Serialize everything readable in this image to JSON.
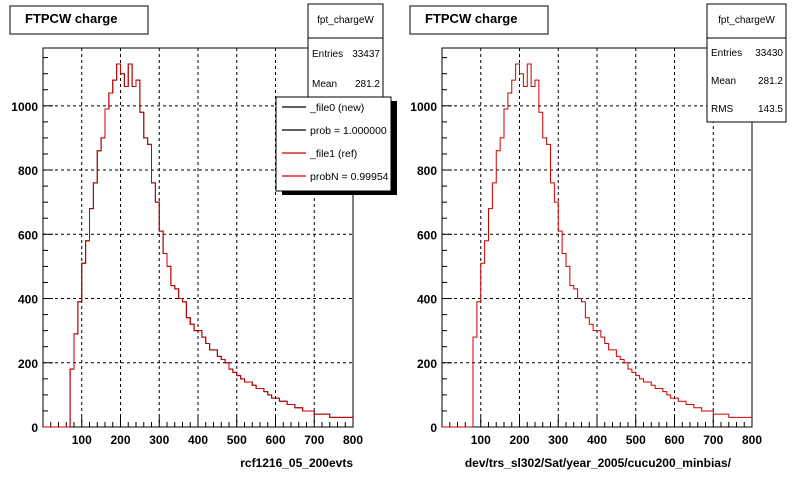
{
  "colors": {
    "background": "#ffffff",
    "frame": "#000000",
    "grid": "#000000",
    "new_hist": "#000000",
    "ref_hist": "#cc0000"
  },
  "chart_data": [
    {
      "type": "line",
      "title": "FTPCW charge",
      "xlabel": "rcf1216_05_200evts",
      "ylabel": "",
      "xlim": [
        0,
        800
      ],
      "ylim": [
        0,
        1180
      ],
      "x_ticks": [
        "100",
        "200",
        "300",
        "400",
        "500",
        "600",
        "700",
        "800"
      ],
      "y_ticks": [
        "0",
        "200",
        "400",
        "600",
        "800",
        "1000"
      ],
      "grid": true,
      "stats": {
        "name": "fpt_chargeW",
        "rows": [
          {
            "label": "Entries",
            "value": "33437"
          },
          {
            "label": "Mean",
            "value": "281.2"
          }
        ]
      },
      "legend": {
        "placement": "top-right",
        "entries": [
          {
            "label": "_file0 (new)",
            "color": "#000000"
          },
          {
            "label": "prob = 1.000000",
            "color": "#000000"
          },
          {
            "label": "_file1 (ref)",
            "color": "#cc0000"
          },
          {
            "label": "probN = 0.999548",
            "color": "#cc0000"
          }
        ]
      },
      "x": [
        70,
        80,
        90,
        100,
        110,
        120,
        130,
        140,
        150,
        160,
        170,
        180,
        190,
        200,
        210,
        220,
        230,
        240,
        250,
        260,
        270,
        280,
        290,
        300,
        310,
        320,
        330,
        340,
        350,
        360,
        370,
        380,
        390,
        400,
        410,
        420,
        430,
        440,
        450,
        460,
        470,
        480,
        490,
        500,
        510,
        520,
        530,
        540,
        550,
        560,
        570,
        580,
        590,
        600,
        610,
        620,
        630,
        640,
        650,
        660,
        670,
        680,
        690,
        700,
        710,
        720,
        730,
        740,
        750,
        760,
        770,
        780,
        790
      ],
      "series": [
        {
          "name": "_file0 (new)",
          "values": [
            180,
            290,
            390,
            510,
            580,
            680,
            760,
            860,
            900,
            990,
            1040,
            1080,
            1130,
            1100,
            1060,
            1130,
            1060,
            1080,
            980,
            900,
            880,
            760,
            700,
            610,
            540,
            500,
            440,
            430,
            400,
            390,
            340,
            320,
            300,
            300,
            280,
            260,
            240,
            240,
            220,
            210,
            200,
            180,
            170,
            160,
            150,
            140,
            140,
            130,
            120,
            120,
            110,
            100,
            90,
            90,
            80,
            80,
            70,
            70,
            60,
            60,
            50,
            50,
            50,
            40,
            40,
            40,
            40,
            30,
            30,
            30,
            30,
            30,
            30
          ]
        },
        {
          "name": "_file1 (ref)",
          "values": [
            180,
            290,
            390,
            510,
            580,
            680,
            760,
            860,
            900,
            990,
            1040,
            1080,
            1130,
            1100,
            1060,
            1130,
            1060,
            1080,
            980,
            900,
            880,
            760,
            700,
            610,
            540,
            500,
            440,
            430,
            400,
            390,
            340,
            320,
            300,
            300,
            280,
            260,
            240,
            240,
            220,
            210,
            200,
            180,
            170,
            160,
            150,
            140,
            140,
            130,
            120,
            120,
            110,
            100,
            90,
            90,
            80,
            80,
            70,
            70,
            60,
            60,
            50,
            50,
            50,
            40,
            40,
            40,
            40,
            30,
            30,
            30,
            30,
            30,
            30
          ]
        }
      ]
    },
    {
      "type": "line",
      "title": "FTPCW charge",
      "xlabel": "dev/trs_sl302/Sat/year_2005/cucu200_minbias/",
      "ylabel": "",
      "xlim": [
        0,
        800
      ],
      "ylim": [
        0,
        1180
      ],
      "x_ticks": [
        "100",
        "200",
        "300",
        "400",
        "500",
        "600",
        "700",
        "800"
      ],
      "y_ticks": [
        "0",
        "200",
        "400",
        "600",
        "800",
        "1000"
      ],
      "grid": true,
      "stats": {
        "name": "fpt_chargeW",
        "rows": [
          {
            "label": "Entries",
            "value": "33430"
          },
          {
            "label": "Mean",
            "value": "281.2"
          },
          {
            "label": "RMS",
            "value": "143.5"
          }
        ]
      },
      "x": [
        70,
        80,
        90,
        100,
        110,
        120,
        130,
        140,
        150,
        160,
        170,
        180,
        190,
        200,
        210,
        220,
        230,
        240,
        250,
        260,
        270,
        280,
        290,
        300,
        310,
        320,
        330,
        340,
        350,
        360,
        370,
        380,
        390,
        400,
        410,
        420,
        430,
        440,
        450,
        460,
        470,
        480,
        490,
        500,
        510,
        520,
        530,
        540,
        550,
        560,
        570,
        580,
        590,
        600,
        610,
        620,
        630,
        640,
        650,
        660,
        670,
        680,
        690,
        700,
        710,
        720,
        730,
        740,
        750,
        760,
        770,
        780,
        790
      ],
      "series": [
        {
          "name": "",
          "values": [
            0,
            280,
            390,
            510,
            580,
            680,
            760,
            860,
            900,
            990,
            1040,
            1080,
            1130,
            1100,
            1060,
            1130,
            1060,
            1080,
            980,
            900,
            880,
            760,
            700,
            610,
            540,
            500,
            440,
            430,
            400,
            390,
            340,
            320,
            300,
            300,
            280,
            260,
            240,
            240,
            220,
            210,
            200,
            180,
            170,
            160,
            150,
            140,
            140,
            130,
            120,
            120,
            110,
            100,
            90,
            90,
            80,
            80,
            70,
            70,
            60,
            60,
            50,
            50,
            50,
            40,
            40,
            40,
            40,
            30,
            30,
            30,
            30,
            30,
            30
          ]
        }
      ]
    }
  ]
}
